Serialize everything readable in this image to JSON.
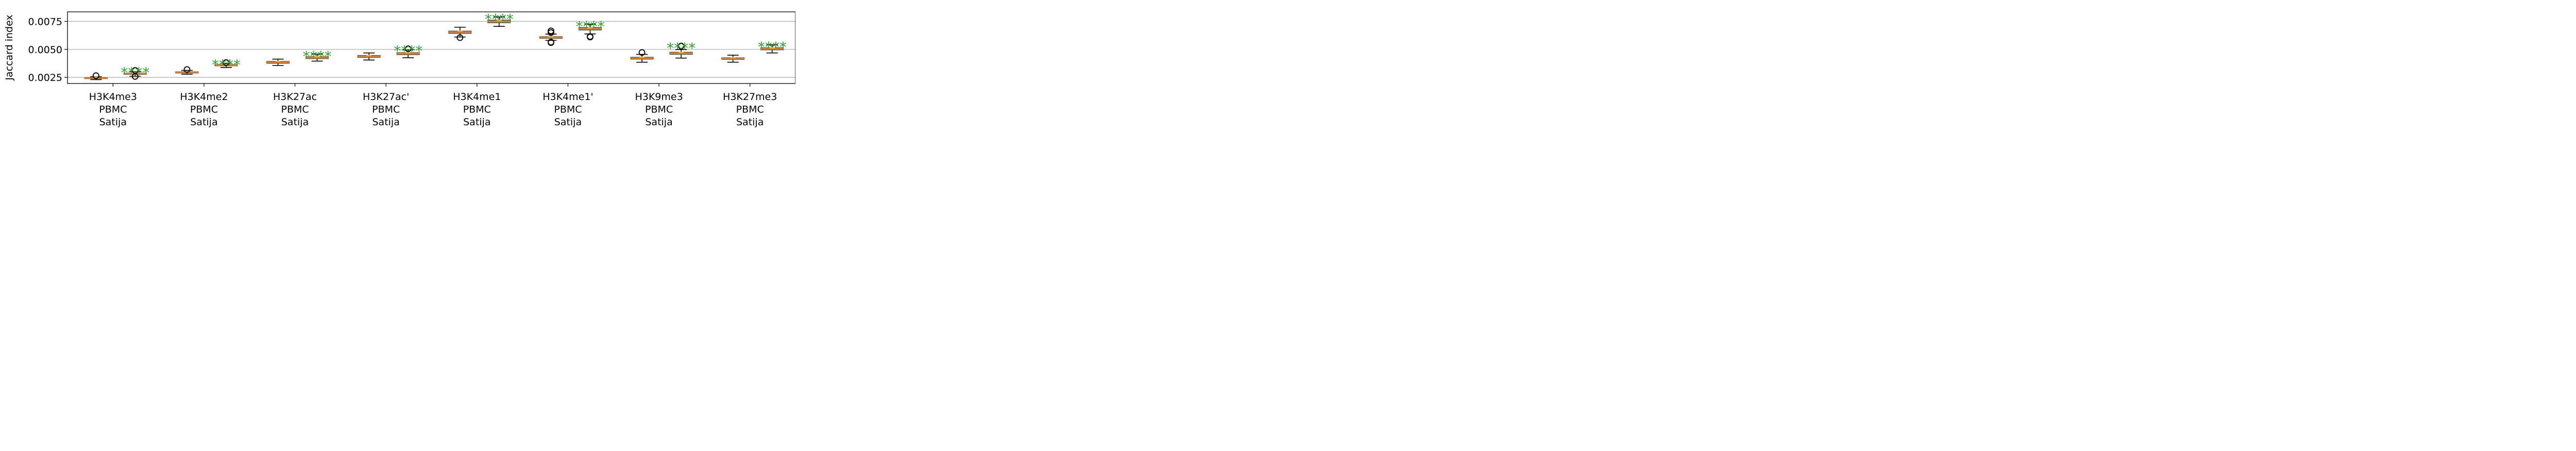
{
  "chart_data": {
    "type": "box",
    "title": "",
    "xlabel": "",
    "ylabel": "Jaccard index",
    "ylim": [
      0.00195,
      0.00835
    ],
    "yticks": [
      {
        "value": 0.0025,
        "label": "0.0025"
      },
      {
        "value": 0.005,
        "label": "0.0050"
      },
      {
        "value": 0.0075,
        "label": "0.0075"
      }
    ],
    "grid_y": true,
    "categories": [
      {
        "lines": [
          "H3K4me3",
          "PBMC",
          "Satija"
        ]
      },
      {
        "lines": [
          "H3K4me2",
          "PBMC",
          "Satija"
        ]
      },
      {
        "lines": [
          "H3K27ac",
          "PBMC",
          "Satija"
        ]
      },
      {
        "lines": [
          "H3K27ac'",
          "PBMC",
          "Satija"
        ]
      },
      {
        "lines": [
          "H3K4me1",
          "PBMC",
          "Satija"
        ]
      },
      {
        "lines": [
          "H3K4me1'",
          "PBMC",
          "Satija"
        ]
      },
      {
        "lines": [
          "H3K9me3",
          "PBMC",
          "Satija"
        ]
      },
      {
        "lines": [
          "H3K27me3",
          "PBMC",
          "Satija"
        ]
      }
    ],
    "series": [
      {
        "color": "#8c6d9e",
        "boxes": [
          {
            "whislo": 0.0023,
            "q1": 0.00238,
            "med": 0.00243,
            "q3": 0.00248,
            "whishi": 0.00255,
            "fliers": [
              0.00265
            ]
          },
          {
            "whislo": 0.00278,
            "q1": 0.00288,
            "med": 0.00294,
            "q3": 0.003,
            "whishi": 0.00312,
            "fliers": [
              0.0032
            ]
          },
          {
            "whislo": 0.00355,
            "q1": 0.00375,
            "med": 0.00385,
            "q3": 0.00393,
            "whishi": 0.00413,
            "fliers": []
          },
          {
            "whislo": 0.00405,
            "q1": 0.00428,
            "med": 0.00437,
            "q3": 0.00446,
            "whishi": 0.00468,
            "fliers": []
          },
          {
            "whislo": 0.0061,
            "q1": 0.00642,
            "med": 0.00654,
            "q3": 0.00664,
            "whishi": 0.00698,
            "fliers": [
              0.00605
            ]
          },
          {
            "whislo": 0.0058,
            "q1": 0.00598,
            "med": 0.00606,
            "q3": 0.00614,
            "whishi": 0.00636,
            "fliers": [
              0.0056,
              0.00565,
              0.0065,
              0.00665
            ]
          },
          {
            "whislo": 0.00385,
            "q1": 0.00412,
            "med": 0.00421,
            "q3": 0.0043,
            "whishi": 0.00455,
            "fliers": [
              0.00472
            ]
          },
          {
            "whislo": 0.00385,
            "q1": 0.0041,
            "med": 0.00417,
            "q3": 0.00425,
            "whishi": 0.00448,
            "fliers": []
          }
        ]
      },
      {
        "color": "#5a8a80",
        "boxes": [
          {
            "whislo": 0.0026,
            "q1": 0.00276,
            "med": 0.00282,
            "q3": 0.00288,
            "whishi": 0.003,
            "fliers": [
              0.00258,
              0.00312
            ]
          },
          {
            "whislo": 0.00338,
            "q1": 0.00352,
            "med": 0.00358,
            "q3": 0.00364,
            "whishi": 0.00376,
            "fliers": [
              0.00382
            ]
          },
          {
            "whislo": 0.00395,
            "q1": 0.00417,
            "med": 0.00426,
            "q3": 0.00435,
            "whishi": 0.00458,
            "fliers": []
          },
          {
            "whislo": 0.00425,
            "q1": 0.00452,
            "med": 0.00462,
            "q3": 0.00471,
            "whishi": 0.00495,
            "fliers": [
              0.00505
            ]
          },
          {
            "whislo": 0.00705,
            "q1": 0.00737,
            "med": 0.00749,
            "q3": 0.00762,
            "whishi": 0.0079,
            "fliers": []
          },
          {
            "whislo": 0.00638,
            "q1": 0.00672,
            "med": 0.00683,
            "q3": 0.00696,
            "whishi": 0.00725,
            "fliers": [
              0.0061,
              0.00615
            ]
          },
          {
            "whislo": 0.00422,
            "q1": 0.00455,
            "med": 0.00465,
            "q3": 0.00475,
            "whishi": 0.00498,
            "fliers": [
              0.0053
            ]
          },
          {
            "whislo": 0.00468,
            "q1": 0.00495,
            "med": 0.00505,
            "q3": 0.00515,
            "whishi": 0.0054,
            "fliers": []
          }
        ]
      }
    ],
    "median_color": "#ff7f0e",
    "mean_color": "#e6c020",
    "annotations": [
      {
        "category": 0,
        "series": 1,
        "text": "****",
        "color": "#2ca02c"
      },
      {
        "category": 1,
        "series": 1,
        "text": "****",
        "color": "#2ca02c"
      },
      {
        "category": 2,
        "series": 1,
        "text": "****",
        "color": "#2ca02c"
      },
      {
        "category": 3,
        "series": 1,
        "text": "****",
        "color": "#2ca02c"
      },
      {
        "category": 4,
        "series": 1,
        "text": "****",
        "color": "#2ca02c"
      },
      {
        "category": 5,
        "series": 1,
        "text": "****",
        "color": "#2ca02c"
      },
      {
        "category": 6,
        "series": 1,
        "text": "****",
        "color": "#2ca02c"
      },
      {
        "category": 7,
        "series": 1,
        "text": "****",
        "color": "#2ca02c"
      }
    ]
  }
}
